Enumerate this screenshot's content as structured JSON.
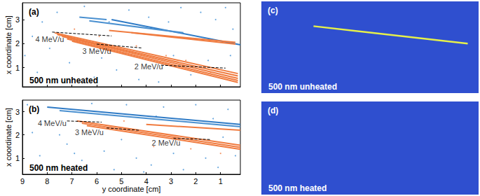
{
  "chart_data": [
    {
      "type": "scatter",
      "panel_label": "(a)",
      "title": "500 nm unheated",
      "y_label": "x coordinate [cm]",
      "xlim": [
        9,
        0.2
      ],
      "xticks": [
        9,
        8,
        7,
        6,
        5,
        4,
        3,
        2,
        1
      ],
      "ylim": [
        0.2,
        3.7
      ],
      "yticks": [
        1,
        2,
        3
      ],
      "tick_labels": "y",
      "grid": false,
      "series": [
        {
          "type": "scatter",
          "marker": "circle",
          "color": "#3d8fd6",
          "values": [
            [
              8.7,
              3.4
            ],
            [
              8.2,
              2.9
            ],
            [
              7.6,
              3.3
            ],
            [
              7.1,
              1.2
            ],
            [
              6.5,
              3.55
            ],
            [
              6.1,
              0.6
            ],
            [
              5.8,
              1.4
            ],
            [
              5.2,
              0.9
            ],
            [
              4.7,
              3.4
            ],
            [
              4.3,
              0.5
            ],
            [
              3.9,
              3.1
            ],
            [
              3.5,
              0.4
            ],
            [
              3.1,
              2.9
            ],
            [
              2.6,
              3.5
            ],
            [
              2.2,
              0.7
            ],
            [
              1.8,
              3.3
            ],
            [
              1.2,
              3.0
            ],
            [
              0.8,
              3.5
            ],
            [
              0.5,
              2.6
            ],
            [
              8.9,
              1.5
            ],
            [
              8.4,
              0.8
            ],
            [
              7.9,
              1.8
            ],
            [
              6.8,
              2.1
            ],
            [
              5.5,
              2.9
            ],
            [
              4.9,
              1.6
            ],
            [
              2.9,
              1.5
            ],
            [
              1.5,
              1.3
            ],
            [
              0.6,
              1.5
            ],
            [
              8.6,
              2.3
            ],
            [
              7.3,
              0.4
            ]
          ]
        },
        {
          "type": "scatter",
          "marker": "circle",
          "color": "#f07b3f",
          "values": [
            [
              6.9,
              2.6
            ],
            [
              5.9,
              2.3
            ],
            [
              4.4,
              1.9
            ],
            [
              3.2,
              1.5
            ],
            [
              2.4,
              1.3
            ],
            [
              1.4,
              0.8
            ]
          ]
        },
        {
          "type": "line",
          "line_style": "solid",
          "color": "#2f7bc6",
          "values": [
            [
              5.4,
              3.0
            ],
            [
              0.2,
              1.95
            ]
          ]
        },
        {
          "type": "line",
          "line_style": "solid",
          "color": "#4a90d0",
          "values": [
            [
              6.3,
              2.95
            ],
            [
              2.5,
              2.45
            ]
          ]
        },
        {
          "type": "line",
          "line_style": "solid",
          "color": "#4a90d0",
          "values": [
            [
              6.7,
              3.1
            ],
            [
              5.6,
              3.0
            ]
          ]
        },
        {
          "type": "line",
          "line_style": "solid",
          "color": "#f07b3f",
          "values": [
            [
              5.5,
              2.55
            ],
            [
              0.4,
              2.05
            ]
          ]
        },
        {
          "type": "line",
          "line_style": "solid",
          "color": "#f07b3f",
          "values": [
            [
              4.6,
              2.45
            ],
            [
              0.4,
              1.98
            ]
          ]
        },
        {
          "type": "line",
          "line_style": "solid",
          "color": "#f07b3f",
          "values": [
            [
              7.7,
              2.45
            ],
            [
              0.3,
              0.75
            ]
          ]
        },
        {
          "type": "line",
          "line_style": "solid",
          "color": "#f07b3f",
          "values": [
            [
              7.6,
              2.38
            ],
            [
              0.3,
              0.65
            ]
          ]
        },
        {
          "type": "line",
          "line_style": "solid",
          "color": "#f07b3f",
          "values": [
            [
              7.4,
              2.3
            ],
            [
              0.3,
              0.55
            ]
          ]
        },
        {
          "type": "line",
          "line_style": "solid",
          "color": "#f07b3f",
          "values": [
            [
              7.2,
              2.2
            ],
            [
              0.3,
              0.46
            ]
          ]
        },
        {
          "type": "line",
          "line_style": "solid",
          "color": "#f07b3f",
          "values": [
            [
              7.0,
              2.1
            ],
            [
              0.3,
              0.38
            ]
          ]
        },
        {
          "type": "line",
          "line_style": "dashed",
          "color": "#000000",
          "values": [
            [
              7.8,
              2.48
            ],
            [
              5.4,
              2.32
            ]
          ]
        },
        {
          "type": "line",
          "line_style": "dashed",
          "color": "#000000",
          "values": [
            [
              6.0,
              1.98
            ],
            [
              4.2,
              1.82
            ]
          ]
        },
        {
          "type": "line",
          "line_style": "dashed",
          "color": "#000000",
          "values": [
            [
              3.4,
              1.1
            ],
            [
              0.8,
              0.98
            ]
          ]
        }
      ],
      "annotations": [
        {
          "text": "4 MeV/u",
          "x": 7.9,
          "y": 2.18
        },
        {
          "text": "3 MeV/u",
          "x": 6.0,
          "y": 1.7
        },
        {
          "text": "2 MeV/u",
          "x": 3.9,
          "y": 1.05
        }
      ]
    },
    {
      "type": "scatter",
      "panel_label": "(b)",
      "title": "500 nm heated",
      "x_label": "y coordinate [cm]",
      "y_label": "x coordinate [cm]",
      "xlim": [
        9,
        0.2
      ],
      "xticks": [
        9,
        8,
        7,
        6,
        5,
        4,
        3,
        2,
        1
      ],
      "ylim": [
        0.3,
        3.5
      ],
      "yticks": [
        1,
        2,
        3
      ],
      "tick_labels": true,
      "grid": false,
      "series": [
        {
          "type": "scatter",
          "marker": "circle",
          "color": "#3d8fd6",
          "values": [
            [
              8.8,
              3.3
            ],
            [
              8.3,
              1.1
            ],
            [
              7.8,
              0.6
            ],
            [
              7.2,
              1.6
            ],
            [
              6.6,
              0.9
            ],
            [
              6.2,
              3.35
            ],
            [
              5.7,
              1.3
            ],
            [
              5.3,
              0.5
            ],
            [
              4.8,
              3.3
            ],
            [
              4.4,
              1.0
            ],
            [
              3.8,
              0.7
            ],
            [
              3.3,
              3.2
            ],
            [
              2.9,
              1.2
            ],
            [
              2.5,
              0.5
            ],
            [
              2.0,
              3.3
            ],
            [
              1.6,
              1.0
            ],
            [
              1.1,
              0.6
            ],
            [
              0.7,
              3.1
            ],
            [
              0.4,
              1.1
            ],
            [
              8.6,
              2.1
            ],
            [
              7.5,
              2.0
            ],
            [
              6.9,
              1.2
            ],
            [
              5.0,
              1.8
            ],
            [
              3.6,
              2.8
            ],
            [
              1.3,
              2.7
            ],
            [
              0.9,
              1.9
            ],
            [
              8.1,
              2.6
            ],
            [
              4.1,
              0.4
            ]
          ]
        },
        {
          "type": "scatter",
          "marker": "circle",
          "color": "#f07b3f",
          "values": [
            [
              6.3,
              2.2
            ],
            [
              4.9,
              2.6
            ],
            [
              3.7,
              1.5
            ],
            [
              2.2,
              1.4
            ],
            [
              1.0,
              1.2
            ]
          ]
        },
        {
          "type": "line",
          "line_style": "solid",
          "color": "#2f7bc6",
          "values": [
            [
              8.0,
              3.2
            ],
            [
              0.2,
              2.45
            ]
          ]
        },
        {
          "type": "line",
          "line_style": "solid",
          "color": "#4a90d0",
          "values": [
            [
              7.5,
              3.05
            ],
            [
              0.2,
              2.35
            ]
          ]
        },
        {
          "type": "line",
          "line_style": "solid",
          "color": "#f07b3f",
          "values": [
            [
              4.0,
              2.45
            ],
            [
              0.2,
              2.2
            ]
          ]
        },
        {
          "type": "line",
          "line_style": "solid",
          "color": "#f07b3f",
          "values": [
            [
              6.8,
              2.6
            ],
            [
              0.2,
              1.55
            ]
          ]
        },
        {
          "type": "line",
          "line_style": "solid",
          "color": "#f07b3f",
          "values": [
            [
              6.6,
              2.5
            ],
            [
              0.2,
              1.46
            ]
          ]
        },
        {
          "type": "line",
          "line_style": "solid",
          "color": "#f07b3f",
          "values": [
            [
              6.4,
              2.4
            ],
            [
              0.2,
              1.38
            ]
          ]
        },
        {
          "type": "line",
          "line_style": "dashed",
          "color": "#000000",
          "values": [
            [
              7.2,
              2.6
            ],
            [
              5.8,
              2.55
            ]
          ]
        },
        {
          "type": "line",
          "line_style": "dashed",
          "color": "#000000",
          "values": [
            [
              5.6,
              2.3
            ],
            [
              4.3,
              2.2
            ]
          ]
        },
        {
          "type": "line",
          "line_style": "dashed",
          "color": "#000000",
          "values": [
            [
              2.9,
              1.85
            ],
            [
              1.4,
              1.8
            ]
          ]
        }
      ],
      "annotations": [
        {
          "text": "4 MeV/u",
          "x": 7.8,
          "y": 2.5
        },
        {
          "text": "3 MeV/u",
          "x": 6.3,
          "y": 2.1
        },
        {
          "text": "2 MeV/u",
          "x": 3.2,
          "y": 1.65
        }
      ]
    },
    {
      "type": "image",
      "title": "500 nm unheated",
      "panel_label": "(c)",
      "color": "#2f4fcf",
      "xlim": [
        0,
        1
      ],
      "ylim": [
        0,
        1
      ],
      "tick_labels": false,
      "series": [
        {
          "type": "line",
          "line_style": "solid",
          "color": "#e6f04a",
          "values": [
            [
              0.24,
              0.73
            ],
            [
              0.95,
              0.54
            ]
          ]
        }
      ]
    },
    {
      "type": "image",
      "title": "500 nm heated",
      "panel_label": "(d)",
      "color": "#2f4fcf",
      "xlim": [
        0,
        1
      ],
      "ylim": [
        0,
        1
      ],
      "tick_labels": false,
      "series": []
    }
  ]
}
